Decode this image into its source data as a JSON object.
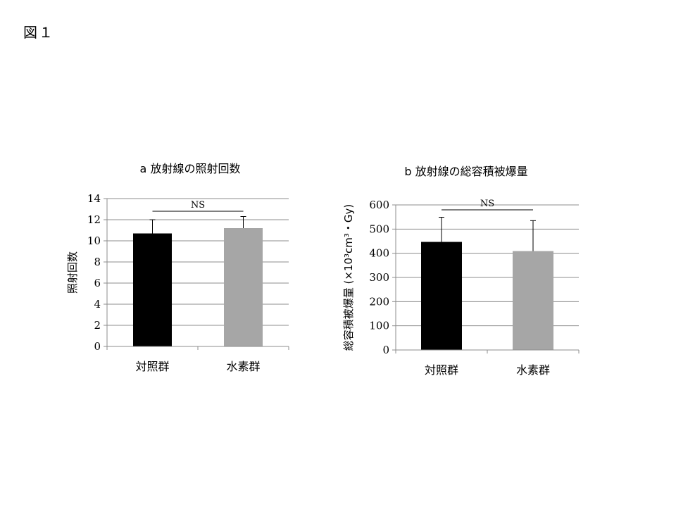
{
  "figure_label": "図１",
  "chart_data": [
    {
      "type": "bar",
      "title": "a  放射線の照射回数",
      "xlabel": "",
      "ylabel": "照射回数",
      "ylim": [
        0,
        14
      ],
      "ytick_labels": [
        "0",
        "2",
        "4",
        "6",
        "8",
        "10",
        "12",
        "14"
      ],
      "categories": [
        "対照群",
        "水素群"
      ],
      "values": [
        10.7,
        11.2
      ],
      "errors": [
        1.3,
        1.1
      ],
      "bar_colors": [
        "#000000",
        "#a6a6a6"
      ],
      "grid": true,
      "annotation": "NS"
    },
    {
      "type": "bar",
      "title": "b  放射線の総容積被爆量",
      "xlabel": "",
      "ylabel": "総容積被爆量 (×10³cm³・Gy)",
      "ylim": [
        0,
        600
      ],
      "ytick_labels": [
        "0",
        "100",
        "200",
        "300",
        "400",
        "500",
        "600"
      ],
      "categories": [
        "対照群",
        "水素群"
      ],
      "values": [
        447,
        409
      ],
      "errors": [
        102,
        126
      ],
      "bar_colors": [
        "#000000",
        "#a6a6a6"
      ],
      "grid": true,
      "annotation": "NS"
    }
  ]
}
